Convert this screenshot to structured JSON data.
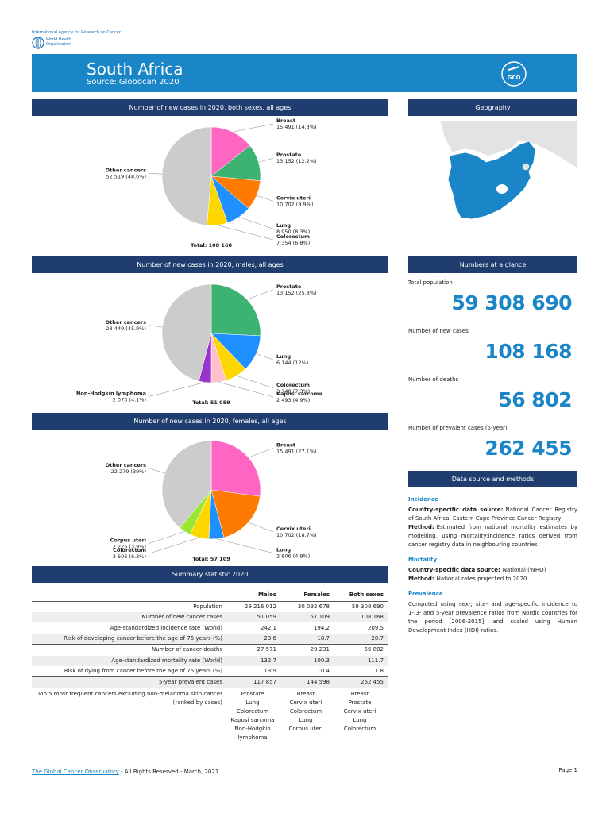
{
  "header": {
    "org_line1": "International Agency for Research on Cancer",
    "org_line2": "World Health",
    "org_line3": "Organization",
    "title": "South Africa",
    "subtitle": "Source: Globocan 2020",
    "logo": "GCO"
  },
  "chart_data": [
    {
      "type": "pie",
      "title": "Number of new cases in 2020, both sexes, all ages",
      "categories": [
        "Breast",
        "Prostate",
        "Cervix uteri",
        "Lung",
        "Colorectum",
        "Other cancers"
      ],
      "values": [
        15491,
        13152,
        10702,
        8950,
        7354,
        52519
      ],
      "value_labels": [
        "15 491 (14.3%)",
        "13 152 (12.2%)",
        "10 702 (9.9%)",
        "8 950 (8.3%)",
        "7 354 (6.8%)",
        "52 519 (48.6%)"
      ],
      "colors": [
        "#ff66c4",
        "#3cb371",
        "#ff7a00",
        "#1e90ff",
        "#ffd700",
        "#cccccc"
      ],
      "total_label": "Total: 108 168"
    },
    {
      "type": "pie",
      "title": "Number of new cases in 2020, males, all ages",
      "categories": [
        "Prostate",
        "Lung",
        "Colorectum",
        "Kaposi sarcoma",
        "Non-Hodgkin lymphoma",
        "Other cancers"
      ],
      "values": [
        13152,
        6144,
        3748,
        2493,
        2073,
        23449
      ],
      "value_labels": [
        "13 152 (25.8%)",
        "6 144 (12%)",
        "3 748 (7.3%)",
        "2 493 (4.9%)",
        "2 073 (4.1%)",
        "23 449 (45.9%)"
      ],
      "colors": [
        "#3cb371",
        "#1e90ff",
        "#ffd700",
        "#ffc0cb",
        "#9933cc",
        "#cccccc"
      ],
      "total_label": "Total: 51 059"
    },
    {
      "type": "pie",
      "title": "Number of new cases in 2020, females, all ages",
      "categories": [
        "Breast",
        "Cervix uteri",
        "Lung",
        "Colorectum",
        "Corpus uteri",
        "Other cancers"
      ],
      "values": [
        15491,
        10702,
        2806,
        3606,
        2225,
        22279
      ],
      "value_labels": [
        "15 491 (27.1%)",
        "10 702 (18.7%)",
        "2 806 (4.9%)",
        "3 606 (6.3%)",
        "2 225 (3.9%)",
        "22 279 (39%)"
      ],
      "colors": [
        "#ff66c4",
        "#ff7a00",
        "#1e90ff",
        "#ffd700",
        "#99e633",
        "#cccccc"
      ],
      "total_label": "Total: 57 109"
    }
  ],
  "geography": {
    "title": "Geography"
  },
  "glance": {
    "title": "Numbers at a glance",
    "items": [
      {
        "label": "Total population",
        "value": "59 308 690"
      },
      {
        "label": "Number of new cases",
        "value": "108 168"
      },
      {
        "label": "Number of deaths",
        "value": "56 802"
      },
      {
        "label": "Number of prevalent cases (5-year)",
        "value": "262 455"
      }
    ]
  },
  "methods": {
    "title": "Data source and methods",
    "sections": [
      {
        "heading": "Incidence",
        "lines": [
          {
            "label": "Country-specific data source:",
            "text": "National Cancer Registry of South Africa, Eastern Cape Province Cancer Registry"
          },
          {
            "label": "Method:",
            "text": "Estimated from national mortality estimates by modelling, using mortality:incidence ratios derived from cancer registry data in neighbouring countries"
          }
        ]
      },
      {
        "heading": "Mortality",
        "lines": [
          {
            "label": "Country-specific data source:",
            "text": "National (WHO)"
          },
          {
            "label": "Method:",
            "text": "National rates projected to 2020"
          }
        ]
      },
      {
        "heading": "Prevalence",
        "lines": [
          {
            "text": "Computed using sex-; site- and age-specific incidence to 1-;3- and 5-year prevalence ratios from Nordic countries for the period [2006-2015], and scaled using Human Development Index (HDI) ratios."
          }
        ]
      }
    ]
  },
  "summary": {
    "title": "Summary statistic 2020",
    "columns": [
      "Males",
      "Females",
      "Both sexes"
    ],
    "rows": [
      {
        "label": "Population",
        "values": [
          "29 216 012",
          "30 092 678",
          "59 308 690"
        ]
      },
      {
        "label": "Number of new cancer cases",
        "values": [
          "51 059",
          "57 109",
          "108 168"
        ]
      },
      {
        "label": "Age-standardized incidence rate (World)",
        "values": [
          "242.1",
          "194.2",
          "209.5"
        ]
      },
      {
        "label": "Risk of developing cancer before the age of 75 years (%)",
        "values": [
          "23.6",
          "18.7",
          "20.7"
        ]
      },
      {
        "label": "Number of cancer deaths",
        "values": [
          "27 571",
          "29 231",
          "56 802"
        ]
      },
      {
        "label": "Age-standardized mortality rate (World)",
        "values": [
          "132.7",
          "100.3",
          "111.7"
        ]
      },
      {
        "label": "Risk of dying from cancer before the age of 75 years (%)",
        "values": [
          "13.9",
          "10.4",
          "11.8"
        ]
      },
      {
        "label": "5-year prevalent cases",
        "values": [
          "117 857",
          "144 598",
          "262 455"
        ]
      }
    ],
    "top5": {
      "label": "Top 5 most frequent cancers excluding non-melanoma skin cancer (ranked by cases)",
      "values": [
        [
          "Prostate",
          "Lung",
          "Colorectum",
          "Kaposi sarcoma",
          "Non-Hodgkin lymphoma"
        ],
        [
          "Breast",
          "Cervix uteri",
          "Colorectum",
          "Lung",
          "Corpus uteri"
        ],
        [
          "Breast",
          "Prostate",
          "Cervix uteri",
          "Lung",
          "Colorectum"
        ]
      ]
    }
  },
  "footer": {
    "link": "The Global Cancer Observatory",
    "text": "- All Rights Reserved - March, 2021.",
    "page": "Page 1"
  }
}
